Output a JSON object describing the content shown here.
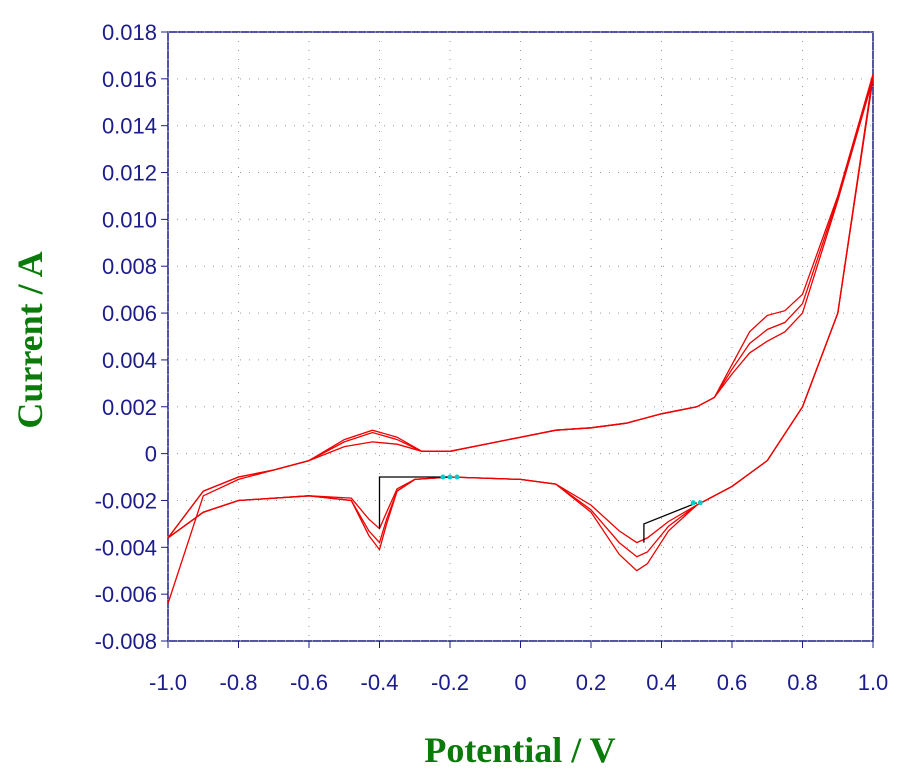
{
  "chart_data": {
    "type": "line",
    "xlabel": "Potential / V",
    "ylabel": "Current / A",
    "xlim": [
      -1,
      1
    ],
    "ylim": [
      -0.008,
      0.018
    ],
    "xticks": [
      {
        "value": -1,
        "label": "-1.0"
      },
      -0.8,
      -0.6,
      -0.4,
      -0.2,
      0,
      0.2,
      0.4,
      0.6,
      0.8,
      {
        "value": 1,
        "label": "1.0"
      }
    ],
    "yticks": [
      -0.008,
      -0.006,
      -0.004,
      -0.002,
      0,
      0.002,
      0.004,
      0.006,
      0.008,
      {
        "value": 0.01,
        "label": "0.010"
      },
      0.012,
      0.014,
      0.016,
      0.018
    ],
    "grid": true,
    "series": [
      {
        "color": "#ee0000",
        "style": "line",
        "x": [
          -1.0,
          -0.9,
          -0.8,
          -0.7,
          -0.6,
          -0.5,
          -0.42,
          -0.35,
          -0.28,
          -0.2,
          -0.1,
          0,
          0.1,
          0.2,
          0.3,
          0.4,
          0.5,
          0.55,
          0.6,
          0.65,
          0.7,
          0.75,
          0.8,
          0.9,
          1.0,
          0.9,
          0.8,
          0.7,
          0.6,
          0.5,
          0.42,
          0.36,
          0.33,
          0.28,
          0.2,
          0.1,
          0,
          -0.2,
          -0.3,
          -0.35,
          -0.38,
          -0.4,
          -0.43,
          -0.48,
          -0.6,
          -0.8,
          -0.9,
          -1.0
        ],
        "values": [
          -0.0064,
          -0.0018,
          -0.0011,
          -0.0007,
          -0.0003,
          0.0003,
          0.0005,
          0.0004,
          0.0001,
          0.0001,
          0.0004,
          0.0007,
          0.001,
          0.0011,
          0.0013,
          0.0017,
          0.002,
          0.0024,
          0.0034,
          0.0043,
          0.0048,
          0.0052,
          0.006,
          0.0108,
          0.016,
          0.006,
          0.002,
          -0.0003,
          -0.0014,
          -0.0022,
          -0.0029,
          -0.0036,
          -0.0038,
          -0.0033,
          -0.0022,
          -0.0013,
          -0.0011,
          -0.001,
          -0.0011,
          -0.0015,
          -0.0025,
          -0.0032,
          -0.0028,
          -0.0019,
          -0.0018,
          -0.002,
          -0.0025,
          -0.0036
        ]
      },
      {
        "color": "#ee0000",
        "style": "line",
        "x": [
          -1.0,
          -0.9,
          -0.8,
          -0.7,
          -0.6,
          -0.5,
          -0.42,
          -0.35,
          -0.28,
          -0.2,
          -0.1,
          0,
          0.1,
          0.2,
          0.3,
          0.4,
          0.5,
          0.55,
          0.6,
          0.65,
          0.7,
          0.75,
          0.8,
          0.9,
          1.0,
          0.9,
          0.8,
          0.7,
          0.6,
          0.5,
          0.42,
          0.36,
          0.33,
          0.28,
          0.2,
          0.1,
          0,
          -0.2,
          -0.3,
          -0.35,
          -0.38,
          -0.4,
          -0.43,
          -0.48,
          -0.6,
          -0.8,
          -0.9,
          -1.0
        ],
        "values": [
          -0.0036,
          -0.0016,
          -0.001,
          -0.0007,
          -0.0003,
          0.0005,
          0.0009,
          0.0006,
          0.0001,
          0.0001,
          0.0004,
          0.0007,
          0.001,
          0.0011,
          0.0013,
          0.0017,
          0.002,
          0.0024,
          0.0036,
          0.0047,
          0.0053,
          0.0056,
          0.0064,
          0.0109,
          0.0161,
          0.006,
          0.002,
          -0.0003,
          -0.0014,
          -0.0022,
          -0.0031,
          -0.0042,
          -0.0044,
          -0.0038,
          -0.0024,
          -0.0013,
          -0.0011,
          -0.001,
          -0.0011,
          -0.0016,
          -0.0028,
          -0.0038,
          -0.0033,
          -0.002,
          -0.0018,
          -0.002,
          -0.0025,
          -0.0036
        ]
      },
      {
        "color": "#ee0000",
        "style": "line",
        "x": [
          -1.0,
          -0.9,
          -0.8,
          -0.7,
          -0.6,
          -0.5,
          -0.42,
          -0.35,
          -0.28,
          -0.2,
          -0.1,
          0,
          0.1,
          0.2,
          0.3,
          0.4,
          0.5,
          0.55,
          0.6,
          0.65,
          0.7,
          0.75,
          0.8,
          0.9,
          1.0,
          0.9,
          0.8,
          0.7,
          0.6,
          0.5,
          0.42,
          0.36,
          0.33,
          0.28,
          0.2,
          0.1,
          0,
          -0.2,
          -0.3,
          -0.35,
          -0.38,
          -0.4,
          -0.43,
          -0.48,
          -0.6,
          -0.8,
          -0.9,
          -1.0
        ],
        "values": [
          -0.0036,
          -0.0016,
          -0.001,
          -0.0007,
          -0.0003,
          0.0006,
          0.001,
          0.0007,
          0.0001,
          0.0001,
          0.0004,
          0.0007,
          0.001,
          0.0011,
          0.0013,
          0.0017,
          0.002,
          0.0024,
          0.0038,
          0.0052,
          0.0059,
          0.0061,
          0.0068,
          0.011,
          0.0162,
          0.006,
          0.002,
          -0.0003,
          -0.0014,
          -0.0022,
          -0.0033,
          -0.0047,
          -0.005,
          -0.0043,
          -0.0025,
          -0.0013,
          -0.0011,
          -0.001,
          -0.0011,
          -0.0016,
          -0.003,
          -0.0041,
          -0.0035,
          -0.002,
          -0.0018,
          -0.002,
          -0.0025,
          -0.0036
        ]
      },
      {
        "color": "#000000",
        "style": "line",
        "x": [
          -0.4,
          -0.4,
          -0.2
        ],
        "values": [
          -0.0032,
          -0.001,
          -0.001
        ]
      },
      {
        "color": "#000000",
        "style": "line",
        "x": [
          0.35,
          0.35,
          0.5
        ],
        "values": [
          -0.0038,
          -0.003,
          -0.0021
        ]
      },
      {
        "color": "#00cccc",
        "style": "markers",
        "x": [
          -0.22,
          -0.2,
          -0.18,
          0.49,
          0.51
        ],
        "values": [
          -0.001,
          -0.001,
          -0.001,
          -0.0021,
          -0.0021
        ]
      }
    ]
  }
}
